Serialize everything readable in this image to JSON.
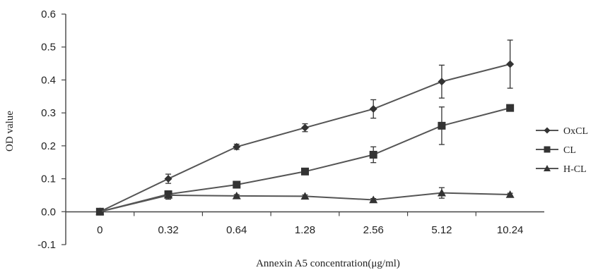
{
  "chart_data": {
    "type": "line",
    "title": "",
    "xlabel": "Annexin A5 concentration(μg/ml)",
    "ylabel": "OD value",
    "categories": [
      "0",
      "0.32",
      "0.64",
      "1.28",
      "2.56",
      "5.12",
      "10.24"
    ],
    "ylim": [
      -0.1,
      0.6
    ],
    "yticks": [
      "-0.1",
      "0.0",
      "0.1",
      "0.2",
      "0.3",
      "0.4",
      "0.5",
      "0.6"
    ],
    "grid": false,
    "legend_position": "right",
    "series": [
      {
        "name": "OxCL",
        "marker": "diamond",
        "values": [
          0.0,
          0.1,
          0.197,
          0.255,
          0.312,
          0.395,
          0.448
        ],
        "errors": [
          0.0,
          0.014,
          0.008,
          0.012,
          0.028,
          0.05,
          0.073
        ]
      },
      {
        "name": "CL",
        "marker": "square",
        "values": [
          0.0,
          0.053,
          0.082,
          0.122,
          0.173,
          0.261,
          0.315
        ],
        "errors": [
          0.0,
          0.01,
          0.008,
          0.005,
          0.024,
          0.057,
          0.005
        ]
      },
      {
        "name": "H-CL",
        "marker": "triangle",
        "values": [
          0.0,
          0.05,
          0.048,
          0.047,
          0.036,
          0.057,
          0.052
        ],
        "errors": [
          0.0,
          0.012,
          0.004,
          0.004,
          0.004,
          0.016,
          0.004
        ]
      }
    ],
    "colors": {
      "line": "#555555",
      "marker": "#333333",
      "axis": "#444444",
      "text": "#222222"
    }
  }
}
